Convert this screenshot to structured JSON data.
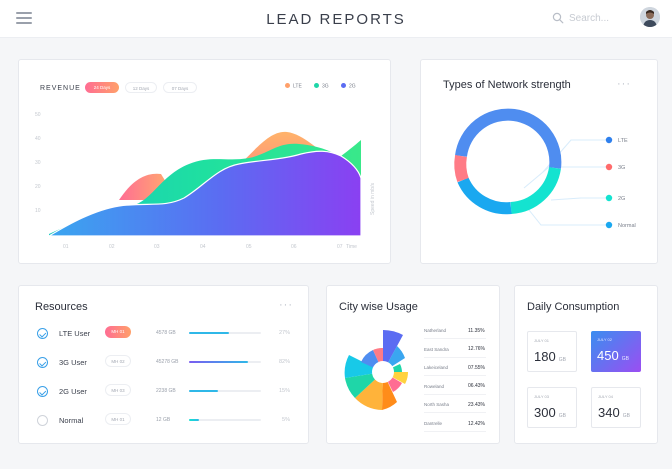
{
  "header": {
    "title": "LEAD REPORTS",
    "search_placeholder": "Search...",
    "menu_icon": "hamburger-icon",
    "search_icon": "search-icon"
  },
  "revenue": {
    "label": "REVENUE",
    "filters": [
      "24 Days",
      "12 Days",
      "07 Days"
    ],
    "active_filter": "24 Days",
    "legend": [
      {
        "name": "LTE",
        "color": "#ff7b86"
      },
      {
        "name": "3G",
        "color": "#1fd6a8"
      },
      {
        "name": "2G",
        "color": "#5b6cf2"
      }
    ],
    "y_axis_label": "Speed in mb/s",
    "x_axis_label": "Time",
    "y_ticks": [
      "10",
      "20",
      "30",
      "40",
      "50"
    ],
    "x_ticks": [
      "01",
      "02",
      "03",
      "04",
      "05",
      "06",
      "07"
    ]
  },
  "network": {
    "title": "Types of Network strength",
    "menu": "···",
    "legend": [
      {
        "name": "LTE",
        "color": "#2f80ed"
      },
      {
        "name": "3G",
        "color": "#ff6b6b"
      },
      {
        "name": "2G",
        "color": "#14e3d0"
      },
      {
        "name": "Normal",
        "color": "#1aa8f0"
      }
    ]
  },
  "resources": {
    "title": "Resources",
    "menu": "···",
    "rows": [
      {
        "name": "LTE  User",
        "badge": "MH 01",
        "size": "4578 GB",
        "pct": "27%",
        "level": 0.55,
        "checked": true,
        "active": true,
        "color": "#2fb8e8"
      },
      {
        "name": "3G  User",
        "badge": "MH 02",
        "size": "45278 GB",
        "pct": "82%",
        "level": 0.82,
        "checked": true,
        "active": false,
        "color": "#7a5cf0"
      },
      {
        "name": "2G  User",
        "badge": "MH 03",
        "size": "2238 GB",
        "pct": "15%",
        "level": 0.4,
        "checked": true,
        "active": false,
        "color": "#2fb8e8"
      },
      {
        "name": "Normal",
        "badge": "MH 01",
        "size": "12 GB",
        "pct": "5%",
        "level": 0.14,
        "checked": false,
        "active": false,
        "color": "#14e3d0"
      }
    ]
  },
  "city": {
    "title": "City wise Usage",
    "rows": [
      {
        "name": "Natherland",
        "value": "11.35%"
      },
      {
        "name": "East Sandra",
        "value": "12.76%"
      },
      {
        "name": "Lakeiceland",
        "value": "07.55%"
      },
      {
        "name": "Roweland",
        "value": "06.43%"
      },
      {
        "name": "North Sasha",
        "value": "23.43%"
      },
      {
        "name": "Dantrelle",
        "value": "12.42%"
      }
    ]
  },
  "daily": {
    "title": "Daily Consumption",
    "unit": "GB",
    "days": [
      {
        "date": "JULY 01",
        "value": "180",
        "active": false
      },
      {
        "date": "JULY 02",
        "value": "450",
        "active": true
      },
      {
        "date": "JULY 03",
        "value": "300",
        "active": false
      },
      {
        "date": "JULY 04",
        "value": "340",
        "active": false
      }
    ]
  }
}
